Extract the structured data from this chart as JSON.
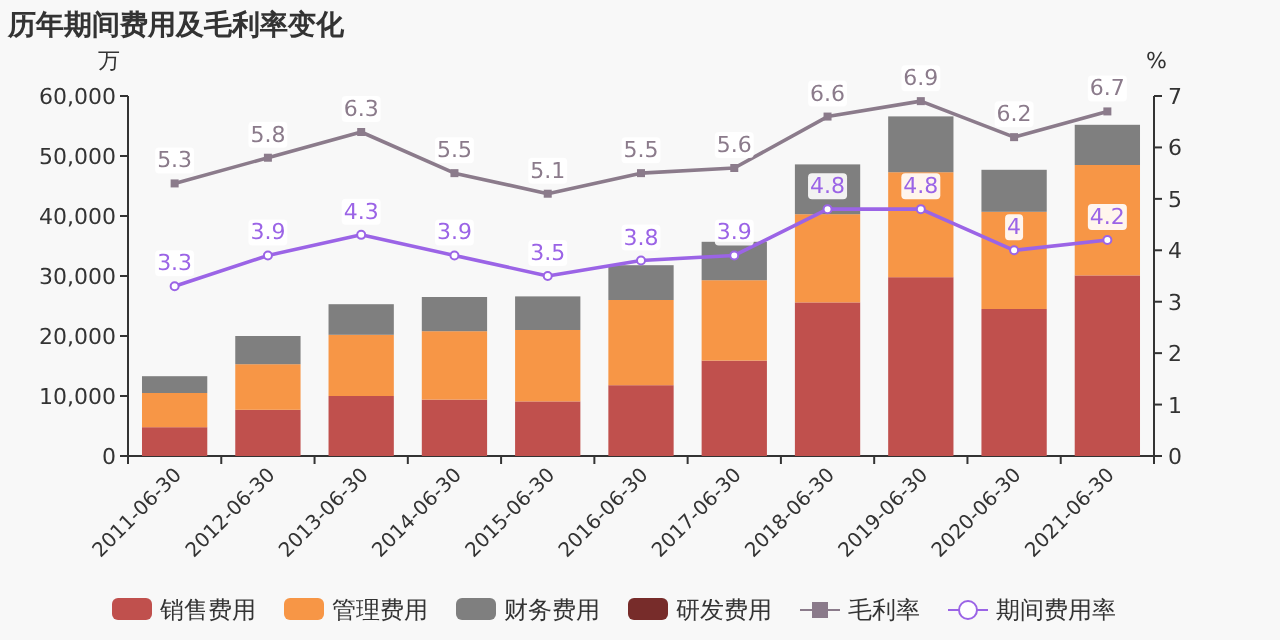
{
  "chart_data": {
    "type": "bar",
    "stacked": true,
    "title": "历年期间费用及毛利率变化",
    "ylabel": "万",
    "y2label": "%",
    "categories": [
      "2011-06-30",
      "2012-06-30",
      "2013-06-30",
      "2014-06-30",
      "2015-06-30",
      "2016-06-30",
      "2017-06-30",
      "2018-06-30",
      "2019-06-30",
      "2020-06-30",
      "2021-06-30"
    ],
    "series": [
      {
        "name": "销售费用",
        "color": "#c0504d",
        "values": [
          4800,
          7700,
          10000,
          9400,
          9100,
          11800,
          15900,
          25600,
          29800,
          24500,
          30100
        ]
      },
      {
        "name": "管理费用",
        "color": "#f79646",
        "values": [
          5700,
          7600,
          10200,
          11400,
          11900,
          14200,
          13400,
          14700,
          17500,
          16200,
          18400
        ]
      },
      {
        "name": "财务费用",
        "color": "#7f7f7f",
        "values": [
          2800,
          4700,
          5100,
          5700,
          5600,
          5800,
          6400,
          8300,
          9300,
          7000,
          6700
        ]
      },
      {
        "name": "研发费用",
        "color": "#772c2a",
        "values": [
          null,
          null,
          null,
          null,
          null,
          null,
          null,
          null,
          null,
          null,
          null
        ]
      },
      {
        "name": "毛利率",
        "type": "line",
        "axis": "y2",
        "color": "#8b7b8b",
        "marker": "square",
        "data_labels": true,
        "values": [
          5.3,
          5.8,
          6.3,
          5.5,
          5.1,
          5.5,
          5.6,
          6.6,
          6.9,
          6.2,
          6.7
        ]
      },
      {
        "name": "期间费用率",
        "type": "line",
        "axis": "y2",
        "color": "#9b64e6",
        "marker": "circle",
        "data_labels": true,
        "values": [
          3.3,
          3.9,
          4.3,
          3.9,
          3.5,
          3.8,
          3.9,
          4.8,
          4.8,
          4,
          4.2
        ]
      }
    ],
    "ylim": [
      0,
      60000
    ],
    "yticks": [
      0,
      {
        "value": 10000,
        "label": "10,000"
      },
      {
        "value": 20000,
        "label": "20,000"
      },
      {
        "value": 30000,
        "label": "30,000"
      },
      {
        "value": 40000,
        "label": "40,000"
      },
      {
        "value": 50000,
        "label": "50,000"
      },
      {
        "value": 60000,
        "label": "60,000"
      }
    ],
    "y2lim": [
      0,
      7
    ],
    "y2ticks": [
      0,
      1,
      2,
      3,
      4,
      5,
      6,
      7
    ],
    "legend": "bottom"
  }
}
